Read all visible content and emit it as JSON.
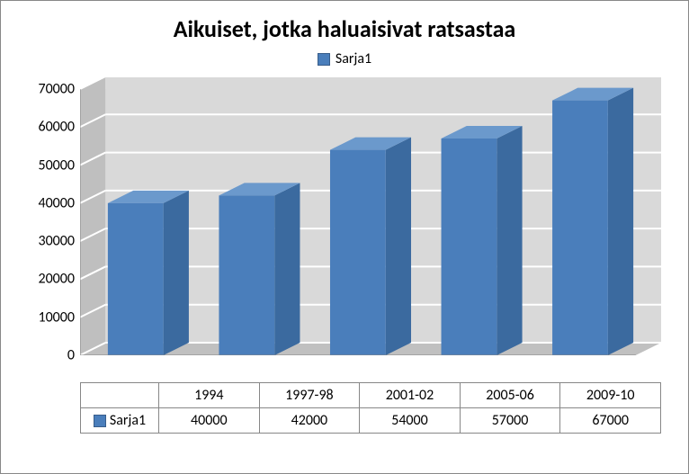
{
  "chart": {
    "type": "bar3d",
    "title": "Aikuiset, jotka haluaisivat ratsastaa",
    "title_fontsize": 26,
    "title_fontweight": "bold",
    "title_color": "#000000",
    "legend_label": "Sarja1",
    "legend_color": "#4a7ebb",
    "legend_border": "#385d8a",
    "categories": [
      "1994",
      "1997-98",
      "2001-02",
      "2005-06",
      "2009-10"
    ],
    "values": [
      40000,
      42000,
      54000,
      57000,
      67000
    ],
    "bar_color_front": "#4a7ebb",
    "bar_color_top": "#6b99cc",
    "bar_color_side": "#3b6a9f",
    "ylim": [
      0,
      70000
    ],
    "ytick_step": 10000,
    "yticks": [
      "0",
      "10000",
      "20000",
      "30000",
      "40000",
      "50000",
      "60000",
      "70000"
    ],
    "floor_color": "#c0c0c0",
    "back_wall_color": "#d9d9d9",
    "side_wall_color": "#bfbfbf",
    "grid_color": "#ffffff",
    "outer_border_color": "#888888",
    "table_border_color": "#878787",
    "depth": 28,
    "bar_width_ratio": 0.5
  }
}
